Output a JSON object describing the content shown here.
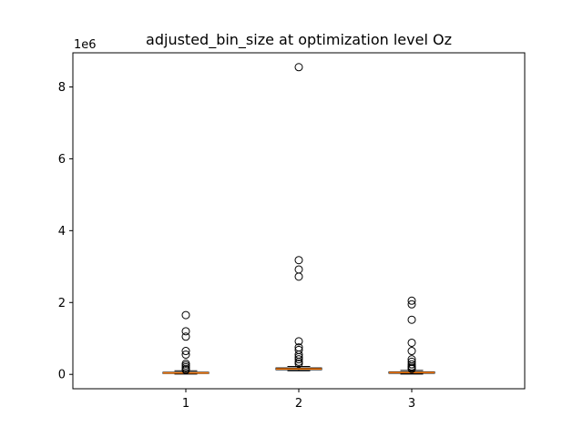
{
  "chart_data": {
    "type": "box",
    "title": "adjusted_bin_size at optimization level Oz",
    "offset_label": "1e6",
    "xlabel": "",
    "ylabel": "",
    "categories": [
      "1",
      "2",
      "3"
    ],
    "ylim": [
      -0.4,
      8.95
    ],
    "yticks": [
      0,
      2,
      4,
      6,
      8
    ],
    "ytick_labels": [
      "0",
      "2",
      "4",
      "6",
      "8"
    ],
    "units": "×1e6",
    "boxes": [
      {
        "category": "1",
        "whisker_low": 0.01,
        "q1": 0.025,
        "median": 0.04,
        "q3": 0.06,
        "whisker_high": 0.1,
        "outliers": [
          1.65,
          1.2,
          1.05,
          0.65,
          0.55,
          0.3,
          0.25,
          0.2,
          0.15,
          0.12
        ]
      },
      {
        "category": "2",
        "whisker_low": 0.1,
        "q1": 0.13,
        "median": 0.15,
        "q3": 0.18,
        "whisker_high": 0.22,
        "outliers": [
          8.55,
          3.18,
          2.92,
          2.72,
          0.92,
          0.75,
          0.68,
          0.55,
          0.48,
          0.42,
          0.35,
          0.3
        ]
      },
      {
        "category": "3",
        "whisker_low": 0.01,
        "q1": 0.03,
        "median": 0.05,
        "q3": 0.07,
        "whisker_high": 0.11,
        "outliers": [
          2.05,
          1.95,
          1.52,
          0.88,
          0.65,
          0.42,
          0.35,
          0.28,
          0.22,
          0.18,
          0.15
        ]
      }
    ],
    "colors": {
      "median": "#ff7f0e",
      "box": "#000000",
      "outlier": "#000000",
      "background": "#ffffff"
    },
    "grid": false,
    "legend": "none"
  }
}
